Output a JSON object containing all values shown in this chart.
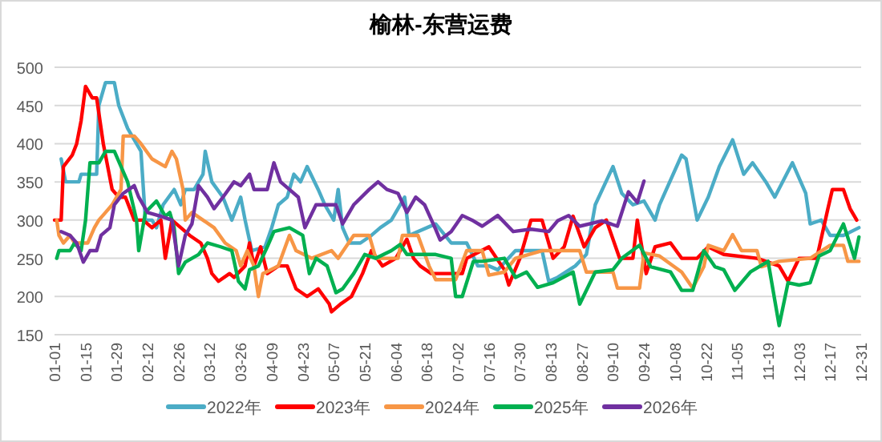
{
  "chart_data": {
    "type": "line",
    "title": "榆林-东营运费",
    "xlim": [
      "--01-01",
      "--12-31"
    ],
    "ylim": [
      150,
      500
    ],
    "yticks": [
      150,
      200,
      250,
      300,
      350,
      400,
      450,
      500
    ],
    "xticks": [
      {
        "value": "--01-01",
        "label": "01-01"
      },
      {
        "value": "--01-15",
        "label": "01-15"
      },
      {
        "value": "--01-29",
        "label": "01-29"
      },
      {
        "value": "--02-12",
        "label": "02-12"
      },
      {
        "value": "--02-26",
        "label": "02-26"
      },
      {
        "value": "--03-12",
        "label": "03-12"
      },
      {
        "value": "--03-26",
        "label": "03-26"
      },
      {
        "value": "--04-09",
        "label": "04-09"
      },
      {
        "value": "--04-23",
        "label": "04-23"
      },
      {
        "value": "--05-07",
        "label": "05-07"
      },
      {
        "value": "--05-21",
        "label": "05-21"
      },
      {
        "value": "--06-04",
        "label": "06-04"
      },
      {
        "value": "--06-18",
        "label": "06-18"
      },
      {
        "value": "--07-02",
        "label": "07-02"
      },
      {
        "value": "--07-16",
        "label": "07-16"
      },
      {
        "value": "--07-30",
        "label": "07-30"
      },
      {
        "value": "--08-13",
        "label": "08-13"
      },
      {
        "value": "--08-27",
        "label": "08-27"
      },
      {
        "value": "--09-10",
        "label": "09-10"
      },
      {
        "value": "--09-24",
        "label": "09-24"
      },
      {
        "value": "--10-08",
        "label": "10-08"
      },
      {
        "value": "--10-22",
        "label": "10-22"
      },
      {
        "value": "--11-05",
        "label": "11-05"
      },
      {
        "value": "--11-19",
        "label": "11-19"
      },
      {
        "value": "--12-03",
        "label": "12-03"
      },
      {
        "value": "--12-17",
        "label": "12-17"
      },
      {
        "value": "--12-31",
        "label": "12-31"
      }
    ],
    "grid": "y",
    "legend": "bottom",
    "series": [
      {
        "name": "2022年",
        "color": "#4bacc6",
        "x": [
          "--01-04",
          "--01-06",
          "--01-12",
          "--01-13",
          "--01-20",
          "--01-21",
          "--01-24",
          "--01-28",
          "--01-30",
          "--02-03",
          "--02-09",
          "--02-11",
          "--02-14",
          "--02-16",
          "--02-19",
          "--02-24",
          "--02-27",
          "--03-01",
          "--03-05",
          "--03-09",
          "--03-10",
          "--03-13",
          "--03-18",
          "--03-22",
          "--03-26",
          "--03-28",
          "--03-31",
          "--04-06",
          "--04-09",
          "--04-12",
          "--04-16",
          "--04-19",
          "--04-22",
          "--04-25",
          "--04-30",
          "--05-03",
          "--05-07",
          "--05-09",
          "--05-11",
          "--05-14",
          "--05-19",
          "--05-24",
          "--05-28",
          "--06-02",
          "--06-08",
          "--06-10",
          "--06-22",
          "--06-29",
          "--07-06",
          "--07-11",
          "--07-16",
          "--07-20",
          "--07-28",
          "--08-09",
          "--08-12",
          "--08-16",
          "--08-24",
          "--08-29",
          "--09-02",
          "--09-10",
          "--09-14",
          "--09-19",
          "--09-24",
          "--09-29",
          "--10-01",
          "--10-11",
          "--10-13",
          "--10-18",
          "--10-23",
          "--10-28",
          "--11-03",
          "--11-08",
          "--11-12",
          "--11-18",
          "--11-22",
          "--11-30",
          "--12-06",
          "--12-08",
          "--12-13",
          "--12-17",
          "--12-23",
          "--12-30"
        ],
        "values": [
          380,
          350,
          350,
          360,
          360,
          450,
          480,
          480,
          450,
          420,
          390,
          300,
          300,
          290,
          320,
          340,
          320,
          340,
          340,
          360,
          390,
          350,
          330,
          300,
          330,
          300,
          260,
          265,
          290,
          320,
          330,
          360,
          350,
          370,
          340,
          320,
          300,
          340,
          290,
          270,
          270,
          280,
          290,
          300,
          330,
          280,
          295,
          270,
          270,
          240,
          240,
          235,
          260,
          260,
          220,
          225,
          240,
          255,
          320,
          370,
          335,
          320,
          325,
          300,
          320,
          385,
          380,
          300,
          330,
          370,
          405,
          360,
          375,
          350,
          330,
          375,
          335,
          295,
          300,
          280,
          280,
          290
        ]
      },
      {
        "name": "2023年",
        "color": "#ff0000",
        "x": [
          "--01-01",
          "--01-04",
          "--01-05",
          "--01-09",
          "--01-11",
          "--01-13",
          "--01-15",
          "--01-18",
          "--01-20",
          "--01-23",
          "--01-27",
          "--01-30",
          "--02-02",
          "--02-06",
          "--02-10",
          "--02-14",
          "--02-18",
          "--02-20",
          "--02-23",
          "--02-27",
          "--03-03",
          "--03-08",
          "--03-11",
          "--03-13",
          "--03-16",
          "--03-21",
          "--03-23",
          "--03-28",
          "--03-30",
          "--04-01",
          "--04-04",
          "--04-07",
          "--04-12",
          "--04-16",
          "--04-20",
          "--04-25",
          "--04-30",
          "--05-05",
          "--05-06",
          "--05-10",
          "--05-15",
          "--05-20",
          "--05-24",
          "--05-29",
          "--06-04",
          "--06-09",
          "--06-12",
          "--06-15",
          "--06-20",
          "--07-04",
          "--07-06",
          "--07-16",
          "--07-23",
          "--07-25",
          "--07-30",
          "--08-04",
          "--08-09",
          "--08-14",
          "--08-19",
          "--08-23",
          "--08-28",
          "--09-02",
          "--09-07",
          "--09-13",
          "--09-19",
          "--09-21",
          "--09-25",
          "--09-29",
          "--10-06",
          "--10-11",
          "--10-18",
          "--10-23",
          "--10-30",
          "--11-14",
          "--11-24",
          "--11-28",
          "--12-03",
          "--12-11",
          "--12-16",
          "--12-18",
          "--12-23",
          "--12-26",
          "--12-29"
        ],
        "values": [
          300,
          300,
          370,
          385,
          400,
          430,
          475,
          460,
          460,
          400,
          340,
          330,
          330,
          300,
          300,
          290,
          300,
          250,
          300,
          290,
          280,
          270,
          250,
          230,
          220,
          230,
          225,
          240,
          270,
          240,
          265,
          230,
          240,
          240,
          210,
          200,
          210,
          190,
          180,
          190,
          200,
          230,
          260,
          240,
          250,
          275,
          250,
          240,
          230,
          230,
          250,
          265,
          235,
          215,
          250,
          300,
          300,
          250,
          265,
          305,
          265,
          290,
          300,
          250,
          250,
          300,
          230,
          265,
          270,
          250,
          250,
          265,
          255,
          250,
          240,
          220,
          250,
          250,
          315,
          340,
          340,
          315,
          300
        ]
      },
      {
        "name": "2024年",
        "color": "#f79646",
        "x": [
          "--01-02",
          "--01-03",
          "--01-05",
          "--01-08",
          "--01-10",
          "--01-13",
          "--01-16",
          "--01-19",
          "--01-21",
          "--01-24",
          "--01-27",
          "--01-31",
          "--02-01",
          "--02-06",
          "--02-09",
          "--02-14",
          "--02-20",
          "--02-23",
          "--02-25",
          "--02-28",
          "--03-01",
          "--03-04",
          "--03-09",
          "--03-14",
          "--03-19",
          "--03-24",
          "--03-26",
          "--03-29",
          "--04-01",
          "--04-03",
          "--04-05",
          "--04-12",
          "--04-17",
          "--04-20",
          "--04-27",
          "--05-06",
          "--05-09",
          "--05-16",
          "--05-23",
          "--05-26",
          "--06-05",
          "--06-07",
          "--06-14",
          "--06-19",
          "--06-22",
          "--07-01",
          "--07-06",
          "--07-13",
          "--07-16",
          "--07-23",
          "--07-28",
          "--08-09",
          "--08-26",
          "--08-29",
          "--09-10",
          "--09-12",
          "--09-22",
          "--09-24",
          "--10-01",
          "--10-11",
          "--10-16",
          "--10-21",
          "--10-23",
          "--10-30",
          "--11-03",
          "--11-07",
          "--11-14",
          "--11-16",
          "--11-24",
          "--12-08",
          "--12-17",
          "--12-23",
          "--12-25",
          "--12-30"
        ],
        "values": [
          300,
          280,
          270,
          280,
          270,
          270,
          270,
          290,
          300,
          310,
          320,
          340,
          410,
          410,
          400,
          380,
          370,
          390,
          380,
          340,
          300,
          310,
          300,
          290,
          270,
          260,
          240,
          260,
          240,
          200,
          230,
          240,
          280,
          260,
          250,
          260,
          250,
          280,
          280,
          250,
          250,
          280,
          280,
          240,
          222,
          222,
          260,
          260,
          228,
          232,
          250,
          260,
          260,
          232,
          232,
          211,
          211,
          257,
          253,
          232,
          211,
          239,
          267,
          260,
          281,
          260,
          260,
          239,
          246,
          250,
          267,
          267,
          246,
          246
        ]
      },
      {
        "name": "2025年",
        "color": "#00b050",
        "x": [
          "--01-02",
          "--01-03",
          "--01-08",
          "--01-10",
          "--01-13",
          "--01-15",
          "--01-17",
          "--01-21",
          "--01-24",
          "--01-28",
          "--02-03",
          "--02-07",
          "--02-08",
          "--02-11",
          "--02-16",
          "--02-20",
          "--02-22",
          "--02-24",
          "--02-26",
          "--03-01",
          "--03-07",
          "--03-11",
          "--03-17",
          "--03-22",
          "--03-25",
          "--03-28",
          "--03-30",
          "--04-03",
          "--04-07",
          "--04-10",
          "--04-17",
          "--04-23",
          "--04-26",
          "--04-29",
          "--05-04",
          "--05-08",
          "--05-11",
          "--05-16",
          "--05-21",
          "--05-26",
          "--06-02",
          "--06-06",
          "--06-09",
          "--06-17",
          "--06-22",
          "--06-29",
          "--07-01",
          "--07-04",
          "--07-09",
          "--07-13",
          "--07-23",
          "--07-28",
          "--08-02",
          "--08-07",
          "--08-14",
          "--08-23",
          "--08-26",
          "--09-02",
          "--09-10",
          "--09-14",
          "--09-22",
          "--09-27",
          "--10-06",
          "--10-11",
          "--10-16",
          "--10-21",
          "--10-26",
          "--10-30",
          "--11-04",
          "--11-11",
          "--11-19",
          "--11-24",
          "--11-28",
          "--12-03",
          "--12-08",
          "--12-12",
          "--12-17",
          "--12-23",
          "--12-28",
          "--12-30"
        ],
        "values": [
          250,
          260,
          260,
          270,
          260,
          300,
          375,
          375,
          390,
          390,
          350,
          300,
          260,
          310,
          325,
          305,
          310,
          290,
          230,
          245,
          255,
          270,
          265,
          260,
          220,
          210,
          235,
          240,
          265,
          285,
          290,
          280,
          230,
          250,
          240,
          205,
          210,
          230,
          255,
          250,
          260,
          268,
          255,
          255,
          255,
          250,
          200,
          200,
          246,
          246,
          250,
          225,
          232,
          212,
          218,
          232,
          190,
          232,
          235,
          250,
          267,
          239,
          232,
          208,
          208,
          260,
          239,
          235,
          208,
          232,
          246,
          162,
          218,
          215,
          218,
          253,
          260,
          295,
          250,
          278
        ]
      },
      {
        "name": "2026年",
        "color": "#7030a0",
        "x": [
          "--01-04",
          "--01-08",
          "--01-11",
          "--01-14",
          "--01-17",
          "--01-20",
          "--01-22",
          "--01-26",
          "--01-28",
          "--02-01",
          "--02-06",
          "--02-08",
          "--02-12",
          "--02-18",
          "--02-23",
          "--02-26",
          "--03-01",
          "--03-04",
          "--03-07",
          "--03-11",
          "--03-14",
          "--03-18",
          "--03-23",
          "--03-26",
          "--03-30",
          "--04-01",
          "--04-07",
          "--04-10",
          "--04-13",
          "--04-17",
          "--04-21",
          "--04-24",
          "--04-29",
          "--05-08",
          "--05-11",
          "--05-16",
          "--05-23",
          "--05-27",
          "--05-31",
          "--06-05",
          "--06-09",
          "--06-13",
          "--06-17",
          "--06-22",
          "--06-24",
          "--06-29",
          "--07-04",
          "--07-09",
          "--07-13",
          "--07-20",
          "--07-27",
          "--08-04",
          "--08-12",
          "--08-16",
          "--08-21",
          "--08-26",
          "--09-05",
          "--09-12",
          "--09-17",
          "--09-21",
          "--09-24"
        ],
        "values": [
          285,
          280,
          270,
          245,
          260,
          260,
          280,
          290,
          320,
          335,
          345,
          330,
          310,
          305,
          300,
          240,
          280,
          295,
          345,
          330,
          315,
          330,
          350,
          345,
          360,
          340,
          340,
          375,
          350,
          340,
          330,
          290,
          320,
          320,
          295,
          320,
          340,
          350,
          340,
          335,
          310,
          330,
          320,
          288,
          274,
          285,
          306,
          299,
          292,
          306,
          285,
          288,
          285,
          299,
          306,
          292,
          299,
          292,
          337,
          323,
          351
        ]
      }
    ]
  }
}
